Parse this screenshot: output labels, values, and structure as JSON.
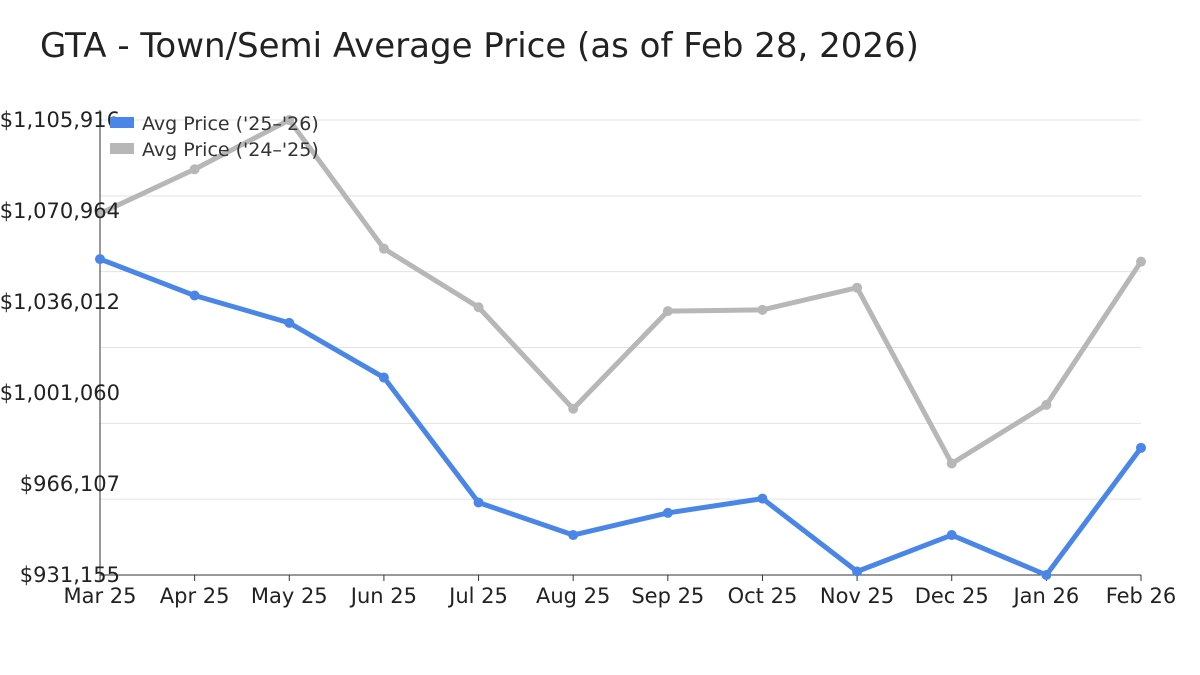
{
  "chart_data": {
    "type": "line",
    "title": "GTA - Town/Semi Average Price (as of Feb 28, 2026)",
    "categories": [
      "Mar 25",
      "Apr 25",
      "May 25",
      "Jun 25",
      "Jul 25",
      "Aug 25",
      "Sep 25",
      "Oct 25",
      "Nov 25",
      "Dec 25",
      "Jan 26",
      "Feb 26"
    ],
    "series": [
      {
        "name": "Avg Price ('25–'26)",
        "color": "#4a86e8",
        "values": [
          1052500,
          1038500,
          1028000,
          1007000,
          959000,
          946500,
          955000,
          960500,
          932500,
          946500,
          931155,
          980000
        ]
      },
      {
        "name": "Avg Price ('24–'25)",
        "color": "#b7b7b7",
        "values": [
          1070000,
          1087000,
          1105916,
          1056500,
          1034000,
          995000,
          1032500,
          1033000,
          1041500,
          974000,
          996500,
          1051500
        ]
      }
    ],
    "y_ticks": [
      "$931,155",
      "$966,107",
      "$1,001,060",
      "$1,036,012",
      "$1,070,964",
      "$1,105,916"
    ],
    "ylim": [
      931155,
      1105916
    ],
    "grid": true,
    "legend_position": "top-left"
  }
}
